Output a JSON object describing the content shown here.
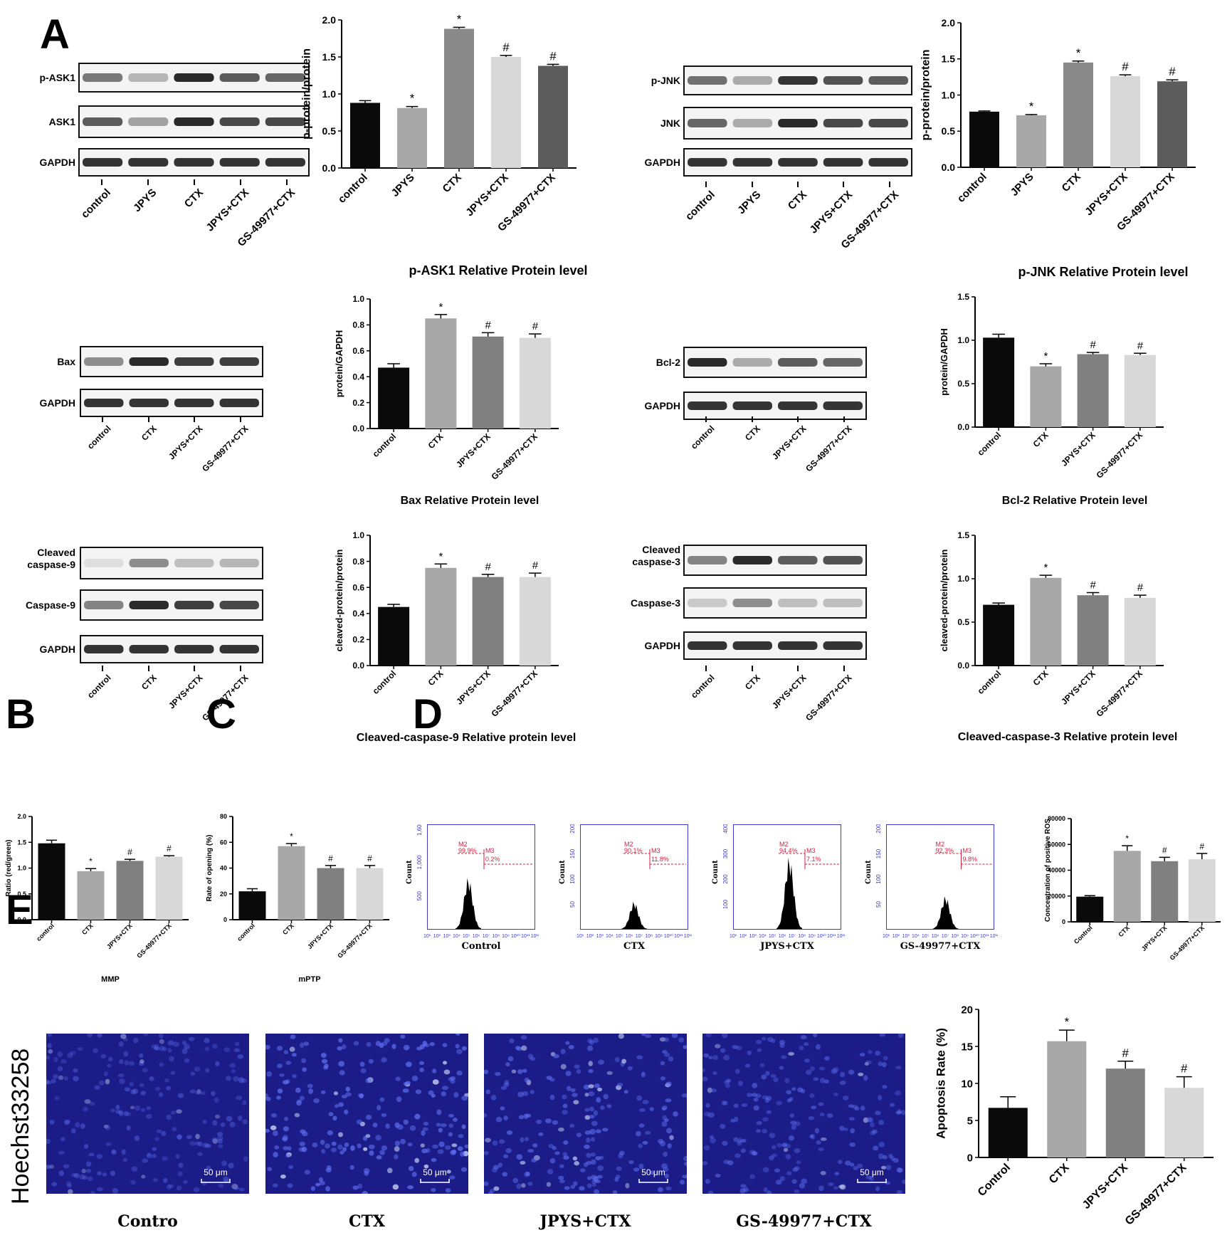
{
  "panel_labels": {
    "A": "A",
    "B": "B",
    "C": "C",
    "D": "D",
    "E": "E"
  },
  "blots": [
    {
      "id": "ask1",
      "rows": [
        "p-ASK1",
        "ASK1",
        "GAPDH"
      ],
      "lanes": [
        "control",
        "JPYS",
        "CTX",
        "JPYS+CTX",
        "GS-49977+CTX"
      ]
    },
    {
      "id": "jnk",
      "rows": [
        "p-JNK",
        "JNK",
        "GAPDH"
      ],
      "lanes": [
        "control",
        "JPYS",
        "CTX",
        "JPYS+CTX",
        "GS-49977+CTX"
      ]
    },
    {
      "id": "bax",
      "rows": [
        "Bax",
        "GAPDH"
      ],
      "lanes": [
        "control",
        "CTX",
        "JPYS+CTX",
        "GS-49977+CTX"
      ]
    },
    {
      "id": "bcl2",
      "rows": [
        "Bcl-2",
        "GAPDH"
      ],
      "lanes": [
        "control",
        "CTX",
        "JPYS+CTX",
        "GS-49977+CTX"
      ]
    },
    {
      "id": "casp9",
      "rows": [
        "Cleaved\ncaspase-9",
        "Caspase-9",
        "GAPDH"
      ],
      "lanes": [
        "control",
        "CTX",
        "JPYS+CTX",
        "GS-49977+CTX"
      ]
    },
    {
      "id": "casp3",
      "rows": [
        "Cleaved\ncaspase-3",
        "Caspase-3",
        "GAPDH"
      ],
      "lanes": [
        "control",
        "CTX",
        "JPYS+CTX",
        "GS-49977+CTX"
      ]
    }
  ],
  "captions": {
    "ask1": "p-ASK1 Relative Protein level",
    "jnk": "p-JNK Relative Protein level",
    "bax": "Bax Relative Protein level",
    "bcl2": "Bcl-2 Relative Protein level",
    "casp9": "Cleaved-caspase-9 Relative protein level",
    "casp3": "Cleaved-caspase-3 Relative protein level",
    "mmp": "MMP",
    "mptp": "mPTP"
  },
  "flow_panels": [
    {
      "name": "Control",
      "ymax": "1,600",
      "yticks": [
        "500",
        "1,000",
        "1,600"
      ],
      "m2": "M2",
      "m2pct": "99.9%",
      "m3": "M3",
      "m3pct": "0.2%"
    },
    {
      "name": "CTX",
      "ymax": "200",
      "yticks": [
        "50",
        "100",
        "150",
        "200"
      ],
      "m2": "M2",
      "m2pct": "90.1%",
      "m3": "M3",
      "m3pct": "11.8%"
    },
    {
      "name": "JPYS+CTX",
      "ymax": "400",
      "yticks": [
        "100",
        "200",
        "300",
        "400"
      ],
      "m2": "M2",
      "m2pct": "94.4%",
      "m3": "M3",
      "m3pct": "7.1%"
    },
    {
      "name": "GS-49977+CTX",
      "ymax": "200",
      "yticks": [
        "50",
        "100",
        "150",
        "200"
      ],
      "m2": "M2",
      "m2pct": "92.3%",
      "m3": "M3",
      "m3pct": "9.8%"
    }
  ],
  "flow_axis": {
    "ylabel": "Count",
    "xticks": [
      "10¹",
      "10²",
      "10³",
      "10⁴",
      "10⁵",
      "10⁶",
      "10⁷",
      "10⁸",
      "10⁹",
      "10¹⁰",
      "10¹¹",
      "10¹²"
    ]
  },
  "micrographs": {
    "side_label": "Hoechst33258",
    "scale_bar": "50 μm",
    "names": [
      "Contro",
      "CTX",
      "JPYS+CTX",
      "GS-49977+CTX"
    ]
  },
  "chart_data": [
    {
      "id": "ask1",
      "type": "bar",
      "categories": [
        "control",
        "JPYS",
        "CTX",
        "JPYS+CTX",
        "GS-49977+CTX"
      ],
      "values": [
        0.88,
        0.81,
        1.88,
        1.5,
        1.38
      ],
      "errors": [
        0.03,
        0.02,
        0.02,
        0.02,
        0.02
      ],
      "marks": [
        "",
        "*",
        "*",
        "#",
        "#"
      ],
      "ylabel": "p-protein/protein",
      "ylim": [
        0,
        2.0
      ],
      "yticks": [
        "0.0",
        "0.5",
        "1.0",
        "1.5",
        "2.0"
      ],
      "colors": [
        "#0a0a0a",
        "#a8a8a8",
        "#8a8a8a",
        "#d8d8d8",
        "#5c5c5c"
      ]
    },
    {
      "id": "jnk",
      "type": "bar",
      "categories": [
        "control",
        "JPYS",
        "CTX",
        "JPYS+CTX",
        "GS-49977+CTX"
      ],
      "values": [
        0.77,
        0.72,
        1.45,
        1.26,
        1.19
      ],
      "errors": [
        0.01,
        0.01,
        0.02,
        0.02,
        0.02
      ],
      "marks": [
        "",
        "*",
        "*",
        "#",
        "#"
      ],
      "ylabel": "p-protein/protein",
      "ylim": [
        0,
        2.0
      ],
      "yticks": [
        "0.0",
        "0.5",
        "1.0",
        "1.5",
        "2.0"
      ],
      "colors": [
        "#0a0a0a",
        "#a8a8a8",
        "#8a8a8a",
        "#d8d8d8",
        "#5c5c5c"
      ]
    },
    {
      "id": "bax",
      "type": "bar",
      "categories": [
        "control",
        "CTX",
        "JPYS+CTX",
        "GS-49977+CTX"
      ],
      "values": [
        0.47,
        0.85,
        0.71,
        0.7
      ],
      "errors": [
        0.03,
        0.03,
        0.03,
        0.03
      ],
      "marks": [
        "",
        "*",
        "#",
        "#"
      ],
      "ylabel": "protein/GAPDH",
      "ylim": [
        0,
        1.0
      ],
      "yticks": [
        "0.0",
        "0.2",
        "0.4",
        "0.6",
        "0.8",
        "1.0"
      ],
      "colors": [
        "#0a0a0a",
        "#a8a8a8",
        "#808080",
        "#d8d8d8"
      ]
    },
    {
      "id": "bcl2",
      "type": "bar",
      "categories": [
        "control",
        "CTX",
        "JPYS+CTX",
        "GS-49977+CTX"
      ],
      "values": [
        1.03,
        0.7,
        0.84,
        0.83
      ],
      "errors": [
        0.04,
        0.03,
        0.02,
        0.02
      ],
      "marks": [
        "",
        "*",
        "#",
        "#"
      ],
      "ylabel": "protein/GAPDH",
      "ylim": [
        0,
        1.5
      ],
      "yticks": [
        "0.0",
        "0.5",
        "1.0",
        "1.5"
      ],
      "colors": [
        "#0a0a0a",
        "#a8a8a8",
        "#808080",
        "#d8d8d8"
      ]
    },
    {
      "id": "casp9",
      "type": "bar",
      "categories": [
        "control",
        "CTX",
        "JPYS+CTX",
        "GS-49977+CTX"
      ],
      "values": [
        0.45,
        0.75,
        0.68,
        0.68
      ],
      "errors": [
        0.02,
        0.03,
        0.02,
        0.03
      ],
      "marks": [
        "",
        "*",
        "#",
        "#"
      ],
      "ylabel": "cleaved-protein/protein",
      "ylim": [
        0,
        1.0
      ],
      "yticks": [
        "0.0",
        "0.2",
        "0.4",
        "0.6",
        "0.8",
        "1.0"
      ],
      "colors": [
        "#0a0a0a",
        "#a8a8a8",
        "#808080",
        "#d8d8d8"
      ]
    },
    {
      "id": "casp3",
      "type": "bar",
      "categories": [
        "control",
        "CTX",
        "JPYS+CTX",
        "GS-49977+CTX"
      ],
      "values": [
        0.7,
        1.01,
        0.81,
        0.78
      ],
      "errors": [
        0.02,
        0.03,
        0.03,
        0.03
      ],
      "marks": [
        "",
        "*",
        "#",
        "#"
      ],
      "ylabel": "cleaved-protein/protein",
      "ylim": [
        0,
        1.5
      ],
      "yticks": [
        "0.0",
        "0.5",
        "1.0",
        "1.5"
      ],
      "colors": [
        "#0a0a0a",
        "#a8a8a8",
        "#808080",
        "#d8d8d8"
      ]
    },
    {
      "id": "mmp",
      "type": "bar",
      "categories": [
        "control",
        "CTX",
        "JPYS+CTX",
        "GS-49977+CTX"
      ],
      "values": [
        1.48,
        0.94,
        1.14,
        1.22
      ],
      "errors": [
        0.06,
        0.05,
        0.03,
        0.02
      ],
      "marks": [
        "",
        "*",
        "#",
        "#"
      ],
      "ylabel": "Ratio (red/green)",
      "ylim": [
        0,
        2.0
      ],
      "yticks": [
        "0.0",
        "0.5",
        "1.0",
        "1.5",
        "2.0"
      ],
      "colors": [
        "#0a0a0a",
        "#a8a8a8",
        "#808080",
        "#d8d8d8"
      ]
    },
    {
      "id": "mptp",
      "type": "bar",
      "categories": [
        "control",
        "CTX",
        "JPYS+CTX",
        "GS-49977+CTX"
      ],
      "values": [
        22,
        57,
        40,
        40
      ],
      "errors": [
        2,
        2,
        2,
        2
      ],
      "marks": [
        "",
        "*",
        "#",
        "#"
      ],
      "ylabel": "Rate of opening (%)",
      "ylim": [
        0,
        80
      ],
      "yticks": [
        "0",
        "20",
        "40",
        "60",
        "80"
      ],
      "colors": [
        "#0a0a0a",
        "#a8a8a8",
        "#808080",
        "#d8d8d8"
      ]
    },
    {
      "id": "ros",
      "type": "bar",
      "categories": [
        "Control",
        "CTX",
        "JPYS+CTX",
        "GS-49977+CTX"
      ],
      "values": [
        19500,
        55000,
        47000,
        48500
      ],
      "errors": [
        800,
        4000,
        3000,
        4500
      ],
      "marks": [
        "",
        "*",
        "#",
        "#"
      ],
      "ylabel": "Concentration of positive ROS",
      "ylim": [
        0,
        80000
      ],
      "yticks": [
        "0",
        "20000",
        "40000",
        "60000",
        "80000"
      ],
      "colors": [
        "#0a0a0a",
        "#a8a8a8",
        "#808080",
        "#d8d8d8"
      ]
    },
    {
      "id": "apop",
      "type": "bar",
      "categories": [
        "Control",
        "CTX",
        "JPYS+CTX",
        "GS-49977+CTX"
      ],
      "values": [
        6.7,
        15.7,
        12.0,
        9.4
      ],
      "errors": [
        1.5,
        1.5,
        1.0,
        1.5
      ],
      "marks": [
        "",
        "*",
        "#",
        "#"
      ],
      "ylabel": "Apoptosis Rate (%)",
      "ylim": [
        0,
        20
      ],
      "yticks": [
        "0",
        "5",
        "10",
        "15",
        "20"
      ],
      "colors": [
        "#0a0a0a",
        "#a8a8a8",
        "#808080",
        "#d8d8d8"
      ]
    }
  ]
}
